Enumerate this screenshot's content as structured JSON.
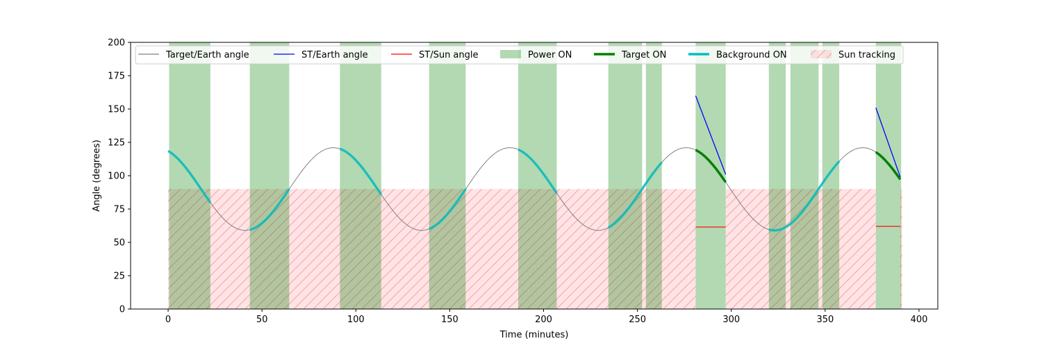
{
  "chart_data": {
    "type": "line",
    "title": "",
    "xlabel": "Time (minutes)",
    "ylabel": "Angle (degrees)",
    "xlim": [
      -20,
      410
    ],
    "ylim": [
      0,
      200
    ],
    "xticks": [
      0,
      50,
      100,
      150,
      200,
      250,
      300,
      350,
      400
    ],
    "yticks": [
      0,
      25,
      50,
      75,
      100,
      125,
      150,
      175,
      200
    ],
    "grid": false,
    "legend_position": "top",
    "legend": [
      {
        "label": "Target/Earth angle",
        "kind": "line",
        "color": "#808080"
      },
      {
        "label": "ST/Earth angle",
        "kind": "line",
        "color": "#0000ff"
      },
      {
        "label": "ST/Sun angle",
        "kind": "line",
        "color": "#ff0000"
      },
      {
        "label": "Power ON",
        "kind": "patch",
        "color": "#008000"
      },
      {
        "label": "Target ON",
        "kind": "thickline",
        "color": "#008000"
      },
      {
        "label": "Background ON",
        "kind": "thickline",
        "color": "#00bfbf"
      },
      {
        "label": "Sun tracking",
        "kind": "hatch",
        "color": "#ff9aa2"
      }
    ],
    "target_earth_angle": {
      "name": "Target/Earth angle",
      "color": "#808080",
      "mean": 90,
      "amplitude": 31,
      "period_minutes": 94,
      "phase_peak_minutes": 88,
      "x_range": [
        0,
        390
      ]
    },
    "power_on_intervals": [
      [
        0.5,
        22.5
      ],
      [
        43.5,
        64.5
      ],
      [
        91.5,
        113.5
      ],
      [
        139,
        158.5
      ],
      [
        186.5,
        207
      ],
      [
        234.5,
        252.5
      ],
      [
        254.5,
        263
      ],
      [
        281,
        297
      ],
      [
        320,
        329
      ],
      [
        331.5,
        346.5
      ],
      [
        348.5,
        357.5
      ],
      [
        377,
        390.5
      ]
    ],
    "sun_tracking": {
      "y": 90,
      "intervals": [
        [
          0,
          281
        ],
        [
          297,
          377
        ],
        [
          390,
          391
        ]
      ]
    },
    "target_on_intervals": [
      [
        281,
        297
      ],
      [
        377,
        390
      ]
    ],
    "background_on_intervals": [
      [
        0,
        22.5
      ],
      [
        43.5,
        64.5
      ],
      [
        91.5,
        113.5
      ],
      [
        139,
        158.5
      ],
      [
        186.5,
        207
      ],
      [
        234.5,
        263
      ],
      [
        320,
        357.5
      ]
    ],
    "st_earth_segments": [
      {
        "x": [
          281,
          297
        ],
        "y": [
          160,
          101
        ]
      },
      {
        "x": [
          377,
          390
        ],
        "y": [
          151,
          99
        ]
      }
    ],
    "st_sun_segments": [
      {
        "x": [
          281,
          297
        ],
        "y": [
          61.5,
          61.5
        ]
      },
      {
        "x": [
          377,
          390
        ],
        "y": [
          62,
          62
        ]
      }
    ]
  }
}
